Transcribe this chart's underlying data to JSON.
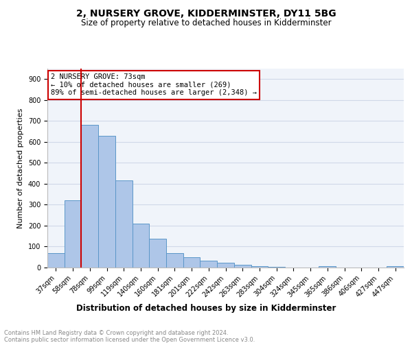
{
  "title": "2, NURSERY GROVE, KIDDERMINSTER, DY11 5BG",
  "subtitle": "Size of property relative to detached houses in Kidderminster",
  "xlabel": "Distribution of detached houses by size in Kidderminster",
  "ylabel": "Number of detached properties",
  "categories": [
    "37sqm",
    "58sqm",
    "78sqm",
    "99sqm",
    "119sqm",
    "140sqm",
    "160sqm",
    "181sqm",
    "201sqm",
    "222sqm",
    "242sqm",
    "263sqm",
    "283sqm",
    "304sqm",
    "324sqm",
    "345sqm",
    "365sqm",
    "386sqm",
    "406sqm",
    "427sqm",
    "447sqm"
  ],
  "values": [
    70,
    320,
    680,
    630,
    415,
    210,
    137,
    70,
    48,
    33,
    22,
    12,
    8,
    2,
    0,
    0,
    8,
    0,
    0,
    0,
    7
  ],
  "bar_color": "#aec6e8",
  "bar_edge_color": "#5a96c8",
  "vline_x": 1.5,
  "vline_color": "#cc0000",
  "annotation_text": "2 NURSERY GROVE: 73sqm\n← 10% of detached houses are smaller (269)\n89% of semi-detached houses are larger (2,348) →",
  "annotation_box_color": "#cc0000",
  "annotation_text_color": "#000000",
  "annotation_facecolor": "#ffffff",
  "ylim": [
    0,
    950
  ],
  "yticks": [
    0,
    100,
    200,
    300,
    400,
    500,
    600,
    700,
    800,
    900
  ],
  "grid_color": "#d0d8e8",
  "background_color": "#f0f4fa",
  "footer_text": "Contains HM Land Registry data © Crown copyright and database right 2024.\nContains public sector information licensed under the Open Government Licence v3.0.",
  "title_fontsize": 10,
  "subtitle_fontsize": 8.5,
  "xlabel_fontsize": 8.5,
  "ylabel_fontsize": 8,
  "tick_fontsize": 7,
  "footer_fontsize": 6,
  "annot_fontsize": 7.5
}
